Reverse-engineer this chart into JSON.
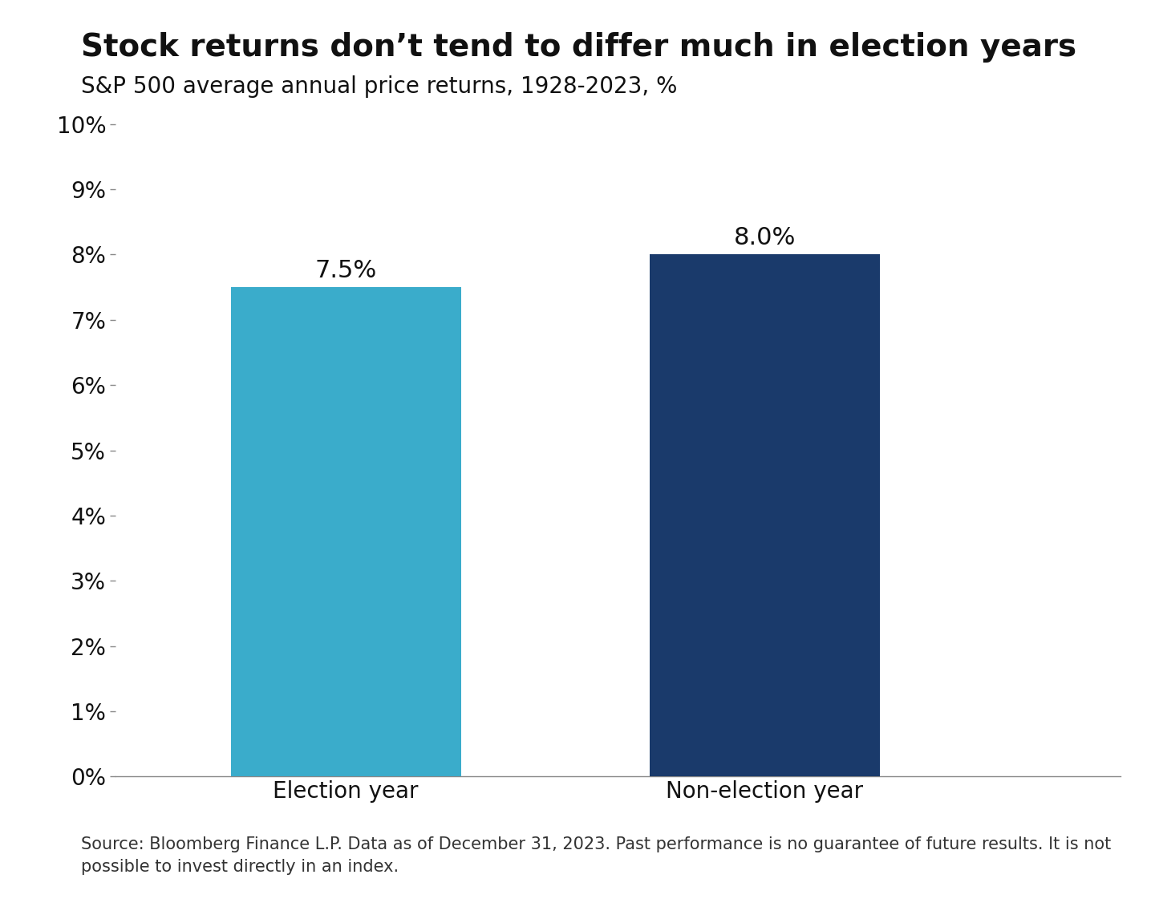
{
  "title": "Stock returns don’t tend to differ much in election years",
  "subtitle": "S&P 500 average annual price returns, 1928-2023, %",
  "categories": [
    "Election year",
    "Non-election year"
  ],
  "values": [
    7.5,
    8.0
  ],
  "bar_colors": [
    "#3aaccb",
    "#1a3a6b"
  ],
  "value_labels": [
    "7.5%",
    "8.0%"
  ],
  "ylim": [
    0,
    10
  ],
  "yticks": [
    0,
    1,
    2,
    3,
    4,
    5,
    6,
    7,
    8,
    9,
    10
  ],
  "ytick_labels": [
    "0%",
    "1%",
    "2%",
    "3%",
    "4%",
    "5%",
    "6%",
    "7%",
    "8%",
    "9%",
    "10%"
  ],
  "footnote": "Source: Bloomberg Finance L.P. Data as of December 31, 2023. Past performance is no guarantee of future results. It is not\npossible to invest directly in an index.",
  "background_color": "#ffffff",
  "title_fontsize": 28,
  "subtitle_fontsize": 20,
  "tick_fontsize": 20,
  "label_fontsize": 22,
  "footnote_fontsize": 15,
  "bar_width": 0.55,
  "bar_positions": [
    1,
    2
  ],
  "xlim": [
    0.45,
    2.85
  ]
}
